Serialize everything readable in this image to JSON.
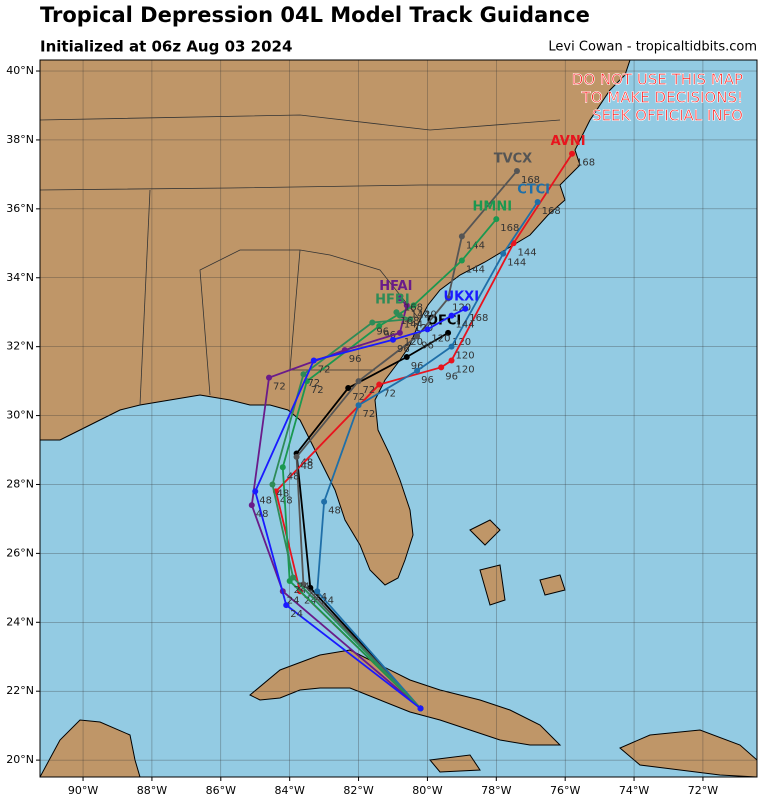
{
  "header": {
    "title": "Tropical Depression 04L Model Track Guidance",
    "subtitle": "Initialized at 06z Aug 03 2024",
    "credit": "Levi Cowan - tropicaltidbits.com"
  },
  "warning": [
    "DO NOT USE THIS MAP",
    "TO MAKE DECISIONS!",
    "SEEK OFFICIAL INFO"
  ],
  "map": {
    "xlim": [
      -91.25,
      -70.43
    ],
    "ylim": [
      19.51,
      40.32
    ],
    "xticks": [
      {
        "value": -90,
        "label": "90°W"
      },
      {
        "value": -88,
        "label": "88°W"
      },
      {
        "value": -86,
        "label": "86°W"
      },
      {
        "value": -84,
        "label": "84°W"
      },
      {
        "value": -82,
        "label": "82°W"
      },
      {
        "value": -80,
        "label": "80°W"
      },
      {
        "value": -78,
        "label": "78°W"
      },
      {
        "value": -76,
        "label": "76°W"
      },
      {
        "value": -74,
        "label": "74°W"
      },
      {
        "value": -72,
        "label": "72°W"
      }
    ],
    "yticks": [
      {
        "value": 20,
        "label": "20°N"
      },
      {
        "value": 22,
        "label": "22°N"
      },
      {
        "value": 24,
        "label": "24°N"
      },
      {
        "value": 26,
        "label": "26°N"
      },
      {
        "value": 28,
        "label": "28°N"
      },
      {
        "value": 30,
        "label": "30°N"
      },
      {
        "value": 32,
        "label": "32°N"
      },
      {
        "value": 34,
        "label": "34°N"
      },
      {
        "value": 36,
        "label": "36°N"
      },
      {
        "value": 38,
        "label": "38°N"
      },
      {
        "value": 40,
        "label": "40°N"
      }
    ]
  },
  "tracks": [
    {
      "name": "OFCI",
      "color": "#000000",
      "lon": [
        -80.2,
        -83.4,
        -83.8,
        -82.3,
        -80.6,
        -79.4
      ],
      "lat": [
        21.5,
        25.0,
        28.9,
        30.8,
        31.7,
        32.4
      ],
      "hours": [
        null,
        24,
        48,
        72,
        96,
        120
      ]
    },
    {
      "name": "AVNI",
      "color": "#e8141e",
      "lon": [
        -80.2,
        -83.7,
        -84.4,
        -81.4,
        -79.6,
        -79.3,
        -77.5,
        -75.8
      ],
      "lat": [
        21.5,
        24.9,
        27.8,
        30.9,
        31.4,
        31.6,
        35.0,
        37.6
      ],
      "hours": [
        null,
        24,
        48,
        72,
        96,
        120,
        144,
        168
      ]
    },
    {
      "name": "TVCX",
      "color": "#555555",
      "lon": [
        -80.2,
        -83.6,
        -83.8,
        -82.0,
        -80.3,
        -79.4,
        -79.0,
        -77.4
      ],
      "lat": [
        21.5,
        25.1,
        28.8,
        31.0,
        32.3,
        33.4,
        35.2,
        37.1
      ],
      "hours": [
        null,
        24,
        48,
        72,
        96,
        120,
        144,
        168
      ]
    },
    {
      "name": "CTCI",
      "color": "#1f6fa8",
      "lon": [
        -80.2,
        -83.2,
        -83.0,
        -82.0,
        -80.3,
        -79.3,
        -77.8,
        -76.8
      ],
      "lat": [
        21.5,
        24.9,
        27.5,
        30.3,
        31.3,
        32.0,
        34.7,
        36.2
      ],
      "hours": [
        null,
        24,
        48,
        72,
        96,
        120,
        144,
        168
      ]
    },
    {
      "name": "HMNI",
      "color": "#1a9850",
      "lon": [
        -80.2,
        -84.0,
        -84.2,
        -83.5,
        -81.4,
        -80.4,
        -79.0,
        -78.0
      ],
      "lat": [
        21.5,
        25.2,
        28.5,
        31.0,
        32.6,
        33.2,
        34.5,
        35.7
      ],
      "hours": [
        null,
        24,
        48,
        72,
        96,
        120,
        144,
        168
      ]
    },
    {
      "name": "HFAI",
      "color": "#6a1b8a",
      "lon": [
        -80.2,
        -84.2,
        -85.1,
        -84.6,
        -82.4,
        -80.8,
        -80.6,
        -80.8
      ],
      "lat": [
        21.5,
        24.9,
        27.4,
        31.1,
        31.9,
        32.4,
        33.2,
        33.4
      ],
      "hours": [
        null,
        24,
        48,
        72,
        96,
        120,
        144,
        168
      ]
    },
    {
      "name": "HFBI",
      "color": "#2e8b57",
      "lon": [
        -80.2,
        -83.9,
        -84.5,
        -83.6,
        -81.6,
        -80.5,
        -80.8,
        -80.9
      ],
      "lat": [
        21.5,
        25.3,
        28.0,
        31.2,
        32.7,
        32.8,
        32.9,
        33.0
      ],
      "hours": [
        null,
        24,
        48,
        72,
        96,
        120,
        144,
        168
      ]
    },
    {
      "name": "UKXI",
      "color": "#1a1aff",
      "lon": [
        -80.2,
        -84.1,
        -85.0,
        -83.3,
        -81.0,
        -80.0,
        -79.3,
        -78.9
      ],
      "lat": [
        21.5,
        24.5,
        27.8,
        31.6,
        32.2,
        32.5,
        32.9,
        33.1
      ],
      "hours": [
        null,
        24,
        48,
        72,
        96,
        120,
        144,
        168
      ]
    }
  ]
}
